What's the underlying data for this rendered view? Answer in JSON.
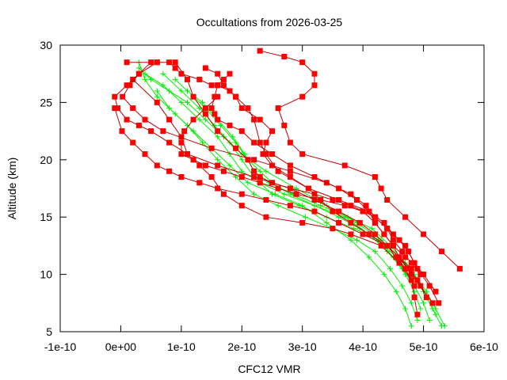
{
  "chart_data": {
    "type": "line",
    "title": "Occultations from 2026-03-25",
    "xlabel": "CFC12 VMR",
    "ylabel": "Altitude (km)",
    "xlim": [
      -1e-10,
      6e-10
    ],
    "ylim": [
      5,
      30
    ],
    "x_ticks": [
      {
        "value": -1e-10,
        "label": "-1e-10"
      },
      {
        "value": 0,
        "label": "0e+00"
      },
      {
        "value": 1e-10,
        "label": "1e-10"
      },
      {
        "value": 2e-10,
        "label": "2e-10"
      },
      {
        "value": 3e-10,
        "label": "3e-10"
      },
      {
        "value": 4e-10,
        "label": "4e-10"
      },
      {
        "value": 5e-10,
        "label": "5e-10"
      },
      {
        "value": 6e-10,
        "label": "6e-10"
      }
    ],
    "y_ticks": [
      {
        "value": 5,
        "label": "5"
      },
      {
        "value": 10,
        "label": "10"
      },
      {
        "value": 15,
        "label": "15"
      },
      {
        "value": 20,
        "label": "20"
      },
      {
        "value": 25,
        "label": "25"
      },
      {
        "value": 30,
        "label": "30"
      }
    ],
    "grid": false,
    "legend": "none",
    "colors": {
      "observed": "#ff0000",
      "observed_line": "#c00000",
      "model": "#00ee00",
      "axis": "#000000"
    },
    "series": [
      {
        "name": "obs-1",
        "group": "observed",
        "marker": "square",
        "x": [
          5.6e-10,
          5.3e-10,
          5e-10,
          4.7e-10,
          4.4e-10,
          4.3e-10,
          4.2e-10,
          3.7e-10,
          3e-10,
          2.8e-10,
          2.7e-10,
          2.6e-10,
          3e-10,
          3.2e-10,
          3.2e-10,
          3e-10,
          2.7e-10,
          2.3e-10
        ],
        "y": [
          10.5,
          12.0,
          13.5,
          15.0,
          16.5,
          17.5,
          18.5,
          19.5,
          20.5,
          21.5,
          23.0,
          24.5,
          25.5,
          26.5,
          27.5,
          28.5,
          29.0,
          29.5
        ]
      },
      {
        "name": "obs-2",
        "group": "observed",
        "marker": "square",
        "x": [
          5.2e-10,
          5e-10,
          4.85e-10,
          4.7e-10,
          4.5e-10,
          4.35e-10,
          4.1e-10,
          3.6e-10,
          3.1e-10,
          2.6e-10,
          2.4e-10,
          2.3e-10,
          2.2e-10,
          2.1e-10,
          1.9e-10,
          1.8e-10,
          1.6e-10,
          1.5e-10,
          1.3e-10,
          1e-10,
          9e-11,
          8e-11,
          6e-11
        ],
        "y": [
          8.5,
          10.0,
          11.0,
          12.5,
          13.5,
          14.5,
          15.5,
          16.5,
          17.5,
          19.0,
          20.5,
          21.5,
          23.5,
          24.5,
          25.5,
          26.0,
          26.5,
          26.5,
          27.0,
          27.5,
          28.0,
          28.5,
          28.5
        ]
      },
      {
        "name": "obs-3",
        "group": "observed",
        "marker": "square",
        "x": [
          4.9e-10,
          4.85e-10,
          4.8e-10,
          4.6e-10,
          4.3e-10,
          3.8e-10,
          3.5e-10,
          3e-10,
          2.4e-10,
          2e-10,
          1.7e-10,
          1.5e-10,
          1.3e-10,
          1.1e-10,
          1e-10,
          8e-11,
          6e-11,
          2e-11
        ],
        "y": [
          6.5,
          8.0,
          9.5,
          11.0,
          12.5,
          13.5,
          14.0,
          14.5,
          15.0,
          16.0,
          17.0,
          18.5,
          19.5,
          20.5,
          22.0,
          23.5,
          25.0,
          27.0
        ]
      },
      {
        "name": "obs-4",
        "group": "observed",
        "marker": "square",
        "x": [
          5.25e-10,
          5.1e-10,
          4.9e-10,
          4.75e-10,
          4.6e-10,
          4.4e-10,
          4.2e-10,
          4e-10,
          3.8e-10,
          3.5e-10,
          3.2e-10,
          2.8e-10,
          2.5e-10,
          2.3e-10,
          2.2e-10,
          2.1e-10,
          1.9e-10,
          1.6e-10,
          1.4e-10,
          1.2e-10,
          1.1e-10,
          9e-11
        ],
        "y": [
          7.5,
          9.0,
          10.5,
          12.0,
          13.0,
          14.0,
          15.0,
          15.5,
          16.0,
          16.5,
          17.0,
          17.5,
          18.0,
          18.5,
          19.0,
          20.0,
          21.0,
          22.5,
          24.0,
          25.5,
          27.0,
          28.5
        ]
      },
      {
        "name": "obs-5",
        "group": "observed",
        "marker": "square",
        "x": [
          5.15e-10,
          4.95e-10,
          4.8e-10,
          4.6e-10,
          4.4e-10,
          4.1e-10,
          3.8e-10,
          3.5e-10,
          3.3e-10,
          3.1e-10,
          2.8e-10,
          2.5e-10,
          2.35e-10,
          2.4e-10,
          2.5e-10,
          2.3e-10,
          2e-10,
          1.9e-10,
          1.7e-10,
          1.6e-10,
          1.4e-10
        ],
        "y": [
          7.5,
          9.0,
          10.0,
          11.5,
          12.5,
          13.5,
          14.5,
          15.5,
          16.5,
          17.5,
          18.5,
          19.5,
          20.5,
          21.5,
          22.5,
          23.5,
          24.5,
          25.5,
          26.5,
          27.5,
          28.0
        ]
      },
      {
        "name": "obs-6",
        "group": "observed",
        "marker": "square",
        "x": [
          4.85e-10,
          4.7e-10,
          4.55e-10,
          4.4e-10,
          4.2e-10,
          3.95e-10,
          3.6e-10,
          3.2e-10,
          2.8e-10,
          2.2e-10,
          1.6e-10,
          1.1e-10,
          8e-11,
          5e-11,
          3e-11,
          1e-11,
          -5e-12,
          -1e-11,
          1e-11,
          3e-11,
          6e-11,
          1e-11
        ],
        "y": [
          9.0,
          10.5,
          11.5,
          12.5,
          13.5,
          14.5,
          15.5,
          16.5,
          17.5,
          18.5,
          19.5,
          20.5,
          21.5,
          22.5,
          23.0,
          23.5,
          24.5,
          25.5,
          26.5,
          27.5,
          28.5,
          28.5
        ]
      },
      {
        "name": "obs-7",
        "group": "observed",
        "marker": "square",
        "x": [
          4.95e-10,
          4.8e-10,
          4.65e-10,
          4.5e-10,
          4.4e-10,
          4.2e-10,
          4.05e-10,
          3.8e-10,
          3.4e-10,
          2.8e-10,
          2.2e-10,
          1.5e-10,
          7e-11,
          4e-11,
          2e-11,
          3e-12,
          1.5e-11,
          3e-11,
          5e-11
        ],
        "y": [
          10.0,
          11.0,
          12.0,
          13.0,
          14.0,
          15.0,
          16.0,
          17.0,
          18.0,
          19.0,
          20.0,
          21.0,
          22.5,
          23.5,
          24.5,
          25.5,
          26.5,
          27.5,
          28.5
        ]
      },
      {
        "name": "obs-8",
        "group": "observed",
        "marker": "square",
        "x": [
          5.05e-10,
          4.9e-10,
          4.75e-10,
          4.6e-10,
          4.5e-10,
          4.35e-10,
          4.2e-10,
          4e-10,
          3.7e-10,
          3.3e-10,
          2.9e-10,
          2.6e-10,
          2.3e-10,
          2e-10,
          1.7e-10,
          1.4e-10,
          1.2e-10,
          1e-10,
          1e-10,
          1.05e-10,
          1.2e-10,
          1.4e-10,
          1.6e-10
        ],
        "y": [
          8.0,
          9.5,
          10.5,
          11.5,
          12.5,
          13.5,
          14.5,
          15.5,
          16.0,
          16.5,
          17.0,
          17.5,
          18.0,
          18.5,
          19.0,
          19.5,
          20.0,
          20.5,
          21.5,
          22.5,
          23.5,
          24.5,
          25.5
        ]
      },
      {
        "name": "obs-9",
        "group": "observed",
        "marker": "square",
        "x": [
          4.8e-10,
          4.6e-10,
          4.4e-10,
          4e-10,
          3.6e-10,
          3.2e-10,
          2.8e-10,
          2.4e-10,
          2e-10,
          1.6e-10,
          1.3e-10,
          1e-10,
          8e-11,
          6e-11,
          4e-11,
          2e-11,
          2e-12,
          -1e-11
        ],
        "y": [
          10.5,
          11.5,
          12.5,
          13.5,
          14.5,
          15.5,
          16.0,
          16.5,
          17.0,
          17.5,
          18.0,
          18.5,
          19.0,
          19.5,
          20.5,
          21.5,
          22.5,
          24.5
        ]
      },
      {
        "name": "obs-10",
        "group": "observed",
        "marker": "square",
        "x": [
          4.7e-10,
          4.5e-10,
          4.35e-10,
          4.2e-10,
          4.1e-10,
          3.9e-10,
          3.6e-10,
          3.2e-10,
          2.8e-10,
          2.5e-10,
          2.2e-10,
          2e-10,
          1.8e-10,
          1.6e-10,
          1.55e-10,
          1.5e-10,
          1.55e-10,
          1.6e-10,
          1.7e-10,
          1.8e-10
        ],
        "y": [
          11.5,
          12.5,
          13.5,
          14.5,
          15.5,
          16.5,
          17.5,
          18.5,
          19.5,
          20.5,
          21.5,
          22.5,
          23.0,
          23.5,
          24.0,
          24.5,
          25.5,
          26.5,
          27.0,
          27.5
        ]
      }
    ],
    "model_series": [
      {
        "name": "model-1",
        "group": "model",
        "marker": "plus",
        "x": [
          5.35e-10,
          5.2e-10,
          5.05e-10,
          4.85e-10,
          4.6e-10,
          4.3e-10,
          3.9e-10,
          3.4e-10,
          2.9e-10,
          2.4e-10,
          2e-10,
          1.7e-10,
          1.4e-10,
          1.1e-10,
          8e-11,
          5e-11,
          3e-11
        ],
        "y": [
          5.5,
          7.0,
          8.5,
          10.0,
          11.5,
          13.0,
          14.5,
          16.0,
          17.5,
          19.0,
          20.5,
          22.0,
          23.5,
          25.0,
          26.0,
          27.0,
          28.0
        ]
      },
      {
        "name": "model-2",
        "group": "model",
        "marker": "plus",
        "x": [
          4.8e-10,
          4.7e-10,
          4.55e-10,
          4.35e-10,
          4.1e-10,
          3.8e-10,
          3.4e-10,
          3e-10,
          2.55e-10,
          2.1e-10,
          1.8e-10,
          1.5e-10,
          1.2e-10,
          9e-11,
          6e-11,
          4e-11,
          3e-11
        ],
        "y": [
          5.5,
          7.0,
          8.5,
          10.0,
          11.5,
          13.0,
          14.5,
          16.0,
          17.0,
          18.0,
          19.5,
          21.0,
          22.5,
          24.0,
          25.5,
          27.0,
          28.5
        ]
      },
      {
        "name": "model-3",
        "group": "model",
        "marker": "plus",
        "x": [
          5.1e-10,
          5e-10,
          4.85e-10,
          4.65e-10,
          4.4e-10,
          4.1e-10,
          3.7e-10,
          3.2e-10,
          2.7e-10,
          2.3e-10,
          2e-10,
          1.8e-10,
          1.6e-10,
          1.3e-10,
          1e-10,
          7e-11,
          4e-11
        ],
        "y": [
          6.0,
          7.5,
          9.0,
          10.5,
          12.0,
          13.5,
          15.0,
          16.0,
          17.0,
          18.0,
          19.0,
          20.5,
          22.0,
          23.5,
          25.0,
          26.5,
          27.5
        ]
      },
      {
        "name": "model-4",
        "group": "model",
        "marker": "plus",
        "x": [
          5.3e-10,
          5.15e-10,
          5e-10,
          4.8e-10,
          4.55e-10,
          4.25e-10,
          3.85e-10,
          3.4e-10,
          2.95e-10,
          2.5e-10,
          2.2e-10,
          2e-10,
          1.8e-10,
          1.55e-10,
          1.3e-10,
          1e-10,
          7e-11
        ],
        "y": [
          5.5,
          7.0,
          8.5,
          10.0,
          11.5,
          13.0,
          14.0,
          15.0,
          16.0,
          17.0,
          18.5,
          20.0,
          21.5,
          23.0,
          24.5,
          26.0,
          27.5
        ]
      },
      {
        "name": "model-5",
        "group": "model",
        "marker": "plus",
        "x": [
          4.9e-10,
          4.8e-10,
          4.65e-10,
          4.45e-10,
          4.2e-10,
          3.9e-10,
          3.5e-10,
          3.05e-10,
          2.6e-10,
          2.2e-10,
          1.9e-10,
          1.6e-10,
          1.35e-10,
          1.1e-10,
          8e-11,
          6e-11
        ],
        "y": [
          6.0,
          7.5,
          9.0,
          10.5,
          12.0,
          13.0,
          14.0,
          15.0,
          16.0,
          17.0,
          18.5,
          20.0,
          21.5,
          23.0,
          24.5,
          26.0
        ]
      },
      {
        "name": "model-6",
        "group": "model",
        "marker": "plus",
        "x": [
          5.2e-10,
          5.05e-10,
          4.9e-10,
          4.7e-10,
          4.45e-10,
          4.15e-10,
          3.75e-10,
          3.3e-10,
          2.85e-10,
          2.45e-10,
          2.2e-10,
          2.05e-10,
          1.85e-10,
          1.6e-10,
          1.35e-10,
          1.1e-10,
          9e-11
        ],
        "y": [
          6.5,
          8.0,
          9.5,
          11.0,
          12.5,
          14.0,
          15.0,
          16.0,
          17.0,
          18.0,
          19.0,
          20.5,
          22.0,
          23.5,
          25.0,
          26.0,
          27.0
        ]
      },
      {
        "name": "model-7",
        "group": "model",
        "marker": "plus",
        "x": [
          4.95e-10,
          4.85e-10,
          4.7e-10,
          4.5e-10,
          4.25e-10,
          3.95e-10,
          3.6e-10,
          3.2e-10,
          2.8e-10,
          2.5e-10,
          2.3e-10,
          2.1e-10,
          1.9e-10,
          1.65e-10,
          1.4e-10,
          1.2e-10
        ],
        "y": [
          7.0,
          8.5,
          10.0,
          11.5,
          13.0,
          14.0,
          15.0,
          16.0,
          17.0,
          18.0,
          19.0,
          20.0,
          21.5,
          23.0,
          24.5,
          25.5
        ]
      }
    ]
  }
}
